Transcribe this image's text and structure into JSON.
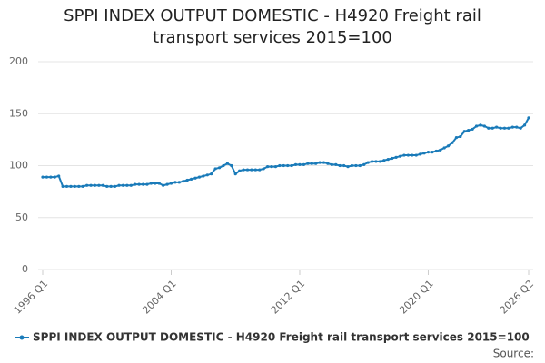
{
  "chart_data": {
    "type": "line",
    "title": "SPPI INDEX OUTPUT DOMESTIC - H4920 Freight rail transport services 2015=100",
    "categories": [
      "1996 Q1",
      null,
      null,
      null,
      null,
      null,
      null,
      null,
      null,
      null,
      null,
      null,
      null,
      null,
      null,
      null,
      null,
      null,
      null,
      null,
      null,
      null,
      null,
      null,
      null,
      null,
      null,
      null,
      null,
      null,
      null,
      null,
      "2004 Q1",
      null,
      null,
      null,
      null,
      null,
      null,
      null,
      null,
      null,
      null,
      null,
      null,
      null,
      null,
      null,
      null,
      null,
      null,
      null,
      null,
      null,
      null,
      null,
      null,
      null,
      null,
      null,
      null,
      null,
      null,
      null,
      "2012 Q1",
      null,
      null,
      null,
      null,
      null,
      null,
      null,
      null,
      null,
      null,
      null,
      null,
      null,
      null,
      null,
      null,
      null,
      null,
      null,
      null,
      null,
      null,
      null,
      null,
      null,
      null,
      null,
      null,
      null,
      null,
      null,
      "2020 Q1",
      null,
      null,
      null,
      null,
      null,
      null,
      null,
      null,
      null,
      null,
      null,
      null,
      null,
      null,
      null,
      null,
      null,
      null,
      null,
      null,
      null,
      null,
      null,
      null,
      "2026 Q2"
    ],
    "series": [
      {
        "name": "SPPI INDEX OUTPUT DOMESTIC - H4920 Freight rail transport services 2015=100",
        "color": "#1a7bb9",
        "values": [
          89,
          89,
          89,
          89,
          90,
          80,
          80,
          80,
          80,
          80,
          80,
          81,
          81,
          81,
          81,
          81,
          80,
          80,
          80,
          81,
          81,
          81,
          81,
          82,
          82,
          82,
          82,
          83,
          83,
          83,
          81,
          82,
          83,
          84,
          84,
          85,
          86,
          87,
          88,
          89,
          90,
          91,
          92,
          97,
          98,
          100,
          102,
          100,
          92,
          95,
          96,
          96,
          96,
          96,
          96,
          97,
          99,
          99,
          99,
          100,
          100,
          100,
          100,
          101,
          101,
          101,
          102,
          102,
          102,
          103,
          103,
          102,
          101,
          101,
          100,
          100,
          99,
          100,
          100,
          100,
          101,
          103,
          104,
          104,
          104,
          105,
          106,
          107,
          108,
          109,
          110,
          110,
          110,
          110,
          111,
          112,
          113,
          113,
          114,
          115,
          117,
          119,
          122,
          127,
          128,
          133,
          134,
          135,
          138,
          139,
          138,
          136,
          136,
          137,
          136,
          136,
          136,
          137,
          137,
          136,
          139,
          146
        ]
      }
    ],
    "ylim": [
      0,
      200
    ],
    "yticks": [
      0,
      50,
      100,
      150,
      200
    ],
    "grid": true,
    "source": "Source:"
  }
}
